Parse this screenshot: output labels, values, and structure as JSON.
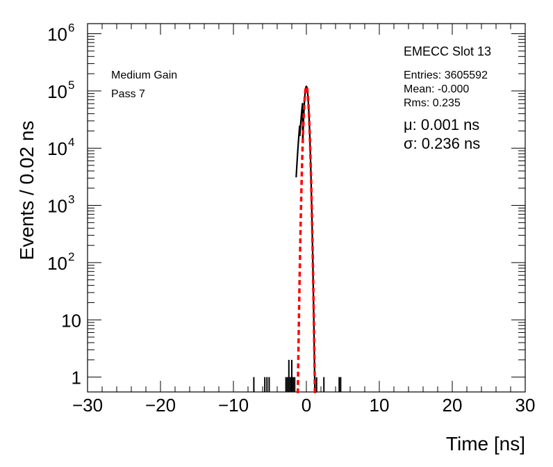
{
  "chart_data": {
    "type": "line",
    "title": "",
    "xlabel": "Time [ns]",
    "ylabel": "Events / 0.02 ns",
    "xlim": [
      -30,
      30
    ],
    "ylim": [
      0.55,
      1500000
    ],
    "y_scale": "log",
    "grid": false,
    "x_ticks": [
      -30,
      -20,
      -10,
      0,
      10,
      20,
      30
    ],
    "x_tick_labels": [
      "−30",
      "−20",
      "−10",
      "0",
      "10",
      "20",
      "30"
    ],
    "y_ticks": [
      {
        "value": 1,
        "base": "1",
        "exp": ""
      },
      {
        "value": 10,
        "base": "10",
        "exp": ""
      },
      {
        "value": 100,
        "base": "10",
        "exp": "2"
      },
      {
        "value": 1000,
        "base": "10",
        "exp": "3"
      },
      {
        "value": 10000,
        "base": "10",
        "exp": "4"
      },
      {
        "value": 100000,
        "base": "10",
        "exp": "5"
      },
      {
        "value": 1000000,
        "base": "10",
        "exp": "6"
      }
    ],
    "annotations": {
      "left_line1": "Medium Gain",
      "left_line2": "Pass 7",
      "stats_title": "EMECC Slot 13",
      "entries": "Entries: 3605592",
      "mean": "Mean: -0.000",
      "rms": "Rms: 0.235",
      "mu": "μ: 0.001 ns",
      "sigma": "σ: 0.236 ns"
    },
    "series": [
      {
        "kind": "histogram",
        "color": "#000000",
        "outliers": [
          {
            "x": -7.2,
            "y": 1
          },
          {
            "x": -5.7,
            "y": 1
          },
          {
            "x": -5.4,
            "y": 1
          },
          {
            "x": -5.1,
            "y": 1
          },
          {
            "x": -2.8,
            "y": 1
          },
          {
            "x": -2.6,
            "y": 1
          },
          {
            "x": -2.4,
            "y": 2
          },
          {
            "x": -2.2,
            "y": 1
          },
          {
            "x": -2.0,
            "y": 2
          },
          {
            "x": -1.8,
            "y": 1
          },
          {
            "x": -1.6,
            "y": 1
          },
          {
            "x": 1.4,
            "y": 1
          },
          {
            "x": 2.4,
            "y": 1
          },
          {
            "x": 4.5,
            "y": 1
          },
          {
            "x": 4.7,
            "y": 1
          }
        ],
        "peak_amplitude": 120000,
        "peak_mean": 0.0,
        "peak_sigma": 0.235,
        "tail_left_sigma": 0.45
      },
      {
        "kind": "gaussian-fit",
        "color": "#ff0000",
        "amplitude": 120000,
        "mean": 0.001,
        "sigma": 0.236,
        "x_range": [
          -1.35,
          1.35
        ]
      }
    ]
  }
}
